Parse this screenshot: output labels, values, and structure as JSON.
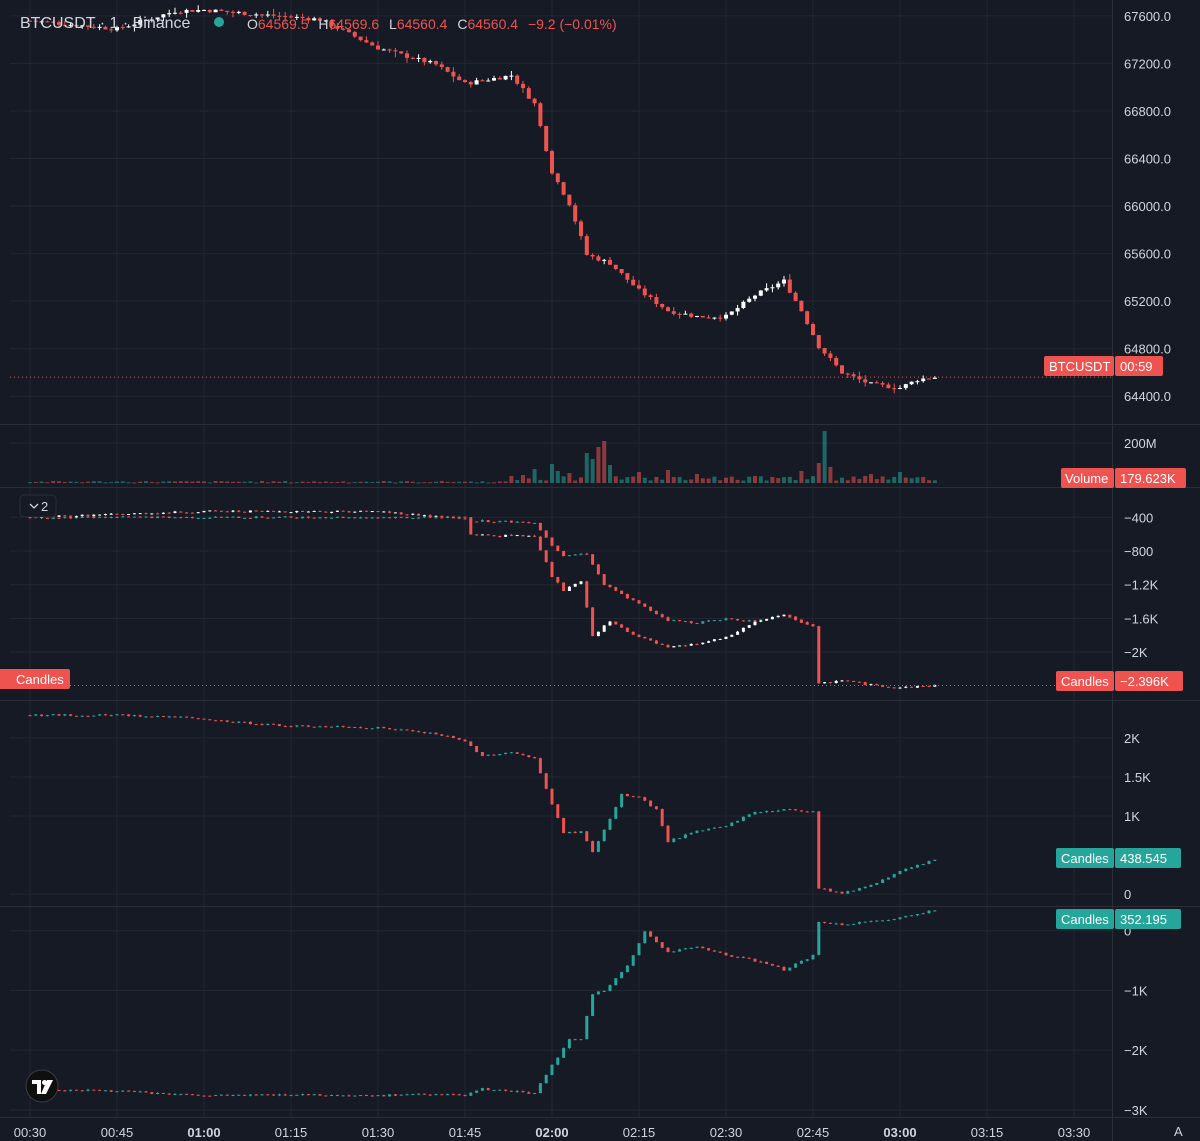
{
  "header": {
    "symbol_title": "BTCUSDT · 1 · Binance",
    "ohlc": {
      "o_label": "O",
      "o_value": "64569.5",
      "h_label": "H",
      "h_value": "64569.6",
      "l_label": "L",
      "l_value": "64560.4",
      "c_label": "C",
      "c_value": "64560.4",
      "change": "−9.2 (−0.01%)"
    },
    "collapse_label": "2"
  },
  "colors": {
    "background": "#161a25",
    "grid": "#232632",
    "up": "#26a69a",
    "down": "#ef5350",
    "neutral": "#ffffff",
    "text": "#d1d4dc",
    "separator": "#2a2e39"
  },
  "tags": {
    "price_symbol": "BTCUSDT",
    "price_countdown": "00:59",
    "volume_name": "Volume",
    "volume_value": "179.623K",
    "cvd1_name": "Candles",
    "cvd1_value": "−2.396K",
    "cvd1_left_name": "Candles",
    "cvd2_name": "Candles",
    "cvd2_value": "438.545",
    "cvd3_name": "Candles",
    "cvd3_value": "352.195"
  },
  "time_axis": [
    "00:30",
    "00:45",
    "01:00",
    "01:15",
    "01:30",
    "01:45",
    "02:00",
    "02:15",
    "02:30",
    "02:45",
    "03:00",
    "03:15",
    "03:30"
  ],
  "time_axis_bold": [
    "01:00",
    "02:00",
    "03:00"
  ],
  "time_axis_extra": "A",
  "chart_data": [
    {
      "type": "candlestick",
      "name": "BTCUSDT · 1 · Binance",
      "x_unit": "time",
      "x_range": [
        "00:30",
        "03:06"
      ],
      "ylim": [
        64200,
        67700
      ],
      "y_ticks": [
        "67600.0",
        "67200.0",
        "66800.0",
        "66400.0",
        "66000.0",
        "65600.0",
        "65200.0",
        "64800.0",
        "64400.0"
      ],
      "y_tick_values": [
        67600,
        67200,
        66800,
        66400,
        66000,
        65600,
        65200,
        64800,
        64400
      ],
      "last_price": 64560.4,
      "anchors": [
        [
          "00:30",
          67560
        ],
        [
          "00:45",
          67490
        ],
        [
          "00:55",
          67640
        ],
        [
          "01:00",
          67650
        ],
        [
          "01:10",
          67610
        ],
        [
          "01:20",
          67570
        ],
        [
          "01:30",
          67330
        ],
        [
          "01:40",
          67190
        ],
        [
          "01:45",
          67030
        ],
        [
          "01:53",
          67100
        ],
        [
          "01:57",
          66860
        ],
        [
          "02:00",
          66290
        ],
        [
          "02:03",
          66020
        ],
        [
          "02:06",
          65590
        ],
        [
          "02:10",
          65520
        ],
        [
          "02:15",
          65290
        ],
        [
          "02:20",
          65120
        ],
        [
          "02:25",
          65070
        ],
        [
          "02:30",
          65070
        ],
        [
          "02:35",
          65250
        ],
        [
          "02:40",
          65370
        ],
        [
          "02:43",
          65120
        ],
        [
          "02:46",
          64820
        ],
        [
          "02:50",
          64600
        ],
        [
          "02:55",
          64500
        ],
        [
          "03:00",
          64470
        ],
        [
          "03:03",
          64540
        ],
        [
          "03:06",
          64560
        ]
      ]
    },
    {
      "type": "bar",
      "name": "Volume",
      "y_ticks": [
        "200M"
      ],
      "y_tick_values": [
        200000000
      ],
      "ylim": [
        0,
        270000000
      ],
      "last_value": "179.623K",
      "base_level": 8000000,
      "spikes": [
        [
          "01:53",
          35000000
        ],
        [
          "01:55",
          40000000
        ],
        [
          "01:57",
          70000000
        ],
        [
          "02:00",
          95000000
        ],
        [
          "02:01",
          60000000
        ],
        [
          "02:03",
          50000000
        ],
        [
          "02:06",
          150000000
        ],
        [
          "02:07",
          120000000
        ],
        [
          "02:08",
          180000000
        ],
        [
          "02:09",
          210000000
        ],
        [
          "02:10",
          90000000
        ],
        [
          "02:15",
          55000000
        ],
        [
          "02:20",
          65000000
        ],
        [
          "02:25",
          45000000
        ],
        [
          "02:43",
          60000000
        ],
        [
          "02:46",
          100000000
        ],
        [
          "02:47",
          260000000
        ],
        [
          "02:48",
          80000000
        ],
        [
          "02:55",
          45000000
        ],
        [
          "03:00",
          55000000
        ]
      ],
      "green_spikes": [
        "02:00",
        "02:47",
        "03:00"
      ]
    },
    {
      "type": "candlestick",
      "name": "Candles",
      "y_ticks": [
        "−400",
        "−800",
        "−1.2K",
        "−1.6K",
        "−2K"
      ],
      "y_tick_values": [
        -400,
        -800,
        -1200,
        -1600,
        -2000
      ],
      "ylim": [
        -2520,
        -100
      ],
      "last_value": -2396,
      "anchors": [
        [
          "00:30",
          -400
        ],
        [
          "01:00",
          -330
        ],
        [
          "01:30",
          -330
        ],
        [
          "01:45",
          -420
        ],
        [
          "01:46",
          -600
        ],
        [
          "01:50",
          -620
        ],
        [
          "01:57",
          -620
        ],
        [
          "02:00",
          -1100
        ],
        [
          "02:02",
          -1270
        ],
        [
          "02:05",
          -1160
        ],
        [
          "02:07",
          -1800
        ],
        [
          "02:10",
          -1640
        ],
        [
          "02:15",
          -1820
        ],
        [
          "02:20",
          -1950
        ],
        [
          "02:25",
          -1900
        ],
        [
          "02:30",
          -1830
        ],
        [
          "02:35",
          -1640
        ],
        [
          "02:40",
          -1560
        ],
        [
          "02:45",
          -1700
        ],
        [
          "02:46",
          -2380
        ],
        [
          "02:50",
          -2330
        ],
        [
          "02:55",
          -2390
        ],
        [
          "03:00",
          -2420
        ],
        [
          "03:06",
          -2396
        ]
      ],
      "secondary_line": [
        [
          "00:30",
          -400
        ],
        [
          "01:45",
          -400
        ],
        [
          "01:46",
          -440
        ],
        [
          "01:57",
          -460
        ],
        [
          "02:00",
          -730
        ],
        [
          "02:02",
          -850
        ],
        [
          "02:06",
          -830
        ],
        [
          "02:09",
          -1200
        ],
        [
          "02:15",
          -1430
        ],
        [
          "02:20",
          -1620
        ],
        [
          "02:25",
          -1650
        ],
        [
          "02:30",
          -1600
        ],
        [
          "02:35",
          -1640
        ],
        [
          "02:40",
          -1560
        ],
        [
          "02:45",
          -1700
        ]
      ]
    },
    {
      "type": "candlestick",
      "name": "Candles",
      "y_ticks": [
        "2K",
        "1.5K",
        "1K",
        "0"
      ],
      "y_tick_values": [
        2000,
        1500,
        1000,
        0
      ],
      "ylim": [
        -100,
        2420
      ],
      "last_value": 438.545,
      "anchors": [
        [
          "00:30",
          2290
        ],
        [
          "00:45",
          2290
        ],
        [
          "00:55",
          2270
        ],
        [
          "01:00",
          2230
        ],
        [
          "01:15",
          2150
        ],
        [
          "01:30",
          2130
        ],
        [
          "01:40",
          2050
        ],
        [
          "01:45",
          1950
        ],
        [
          "01:48",
          1770
        ],
        [
          "01:53",
          1820
        ],
        [
          "01:57",
          1730
        ],
        [
          "02:00",
          1160
        ],
        [
          "02:02",
          780
        ],
        [
          "02:05",
          800
        ],
        [
          "02:07",
          540
        ],
        [
          "02:10",
          960
        ],
        [
          "02:12",
          1270
        ],
        [
          "02:15",
          1240
        ],
        [
          "02:18",
          1080
        ],
        [
          "02:20",
          680
        ],
        [
          "02:25",
          800
        ],
        [
          "02:30",
          880
        ],
        [
          "02:35",
          1050
        ],
        [
          "02:40",
          1080
        ],
        [
          "02:45",
          1060
        ],
        [
          "02:46",
          80
        ],
        [
          "02:50",
          10
        ],
        [
          "02:55",
          120
        ],
        [
          "03:00",
          290
        ],
        [
          "03:06",
          438
        ]
      ]
    },
    {
      "type": "candlestick",
      "name": "Candles",
      "y_ticks": [
        "0",
        "−1K",
        "−2K",
        "−3K"
      ],
      "y_tick_values": [
        0,
        -1000,
        -2000,
        -3000
      ],
      "ylim": [
        -3050,
        330
      ],
      "last_value": 352.195,
      "anchors": [
        [
          "00:30",
          -2650
        ],
        [
          "00:45",
          -2680
        ],
        [
          "00:55",
          -2740
        ],
        [
          "01:00",
          -2760
        ],
        [
          "01:15",
          -2740
        ],
        [
          "01:30",
          -2760
        ],
        [
          "01:40",
          -2730
        ],
        [
          "01:45",
          -2760
        ],
        [
          "01:48",
          -2650
        ],
        [
          "01:57",
          -2720
        ],
        [
          "02:00",
          -2250
        ],
        [
          "02:03",
          -1830
        ],
        [
          "02:05",
          -1830
        ],
        [
          "02:07",
          -1050
        ],
        [
          "02:09",
          -1000
        ],
        [
          "02:13",
          -600
        ],
        [
          "02:16",
          -30
        ],
        [
          "02:20",
          -350
        ],
        [
          "02:25",
          -270
        ],
        [
          "02:30",
          -400
        ],
        [
          "02:35",
          -500
        ],
        [
          "02:40",
          -650
        ],
        [
          "02:45",
          -420
        ],
        [
          "02:46",
          150
        ],
        [
          "02:50",
          100
        ],
        [
          "02:55",
          150
        ],
        [
          "03:00",
          220
        ],
        [
          "03:06",
          352
        ]
      ]
    }
  ]
}
